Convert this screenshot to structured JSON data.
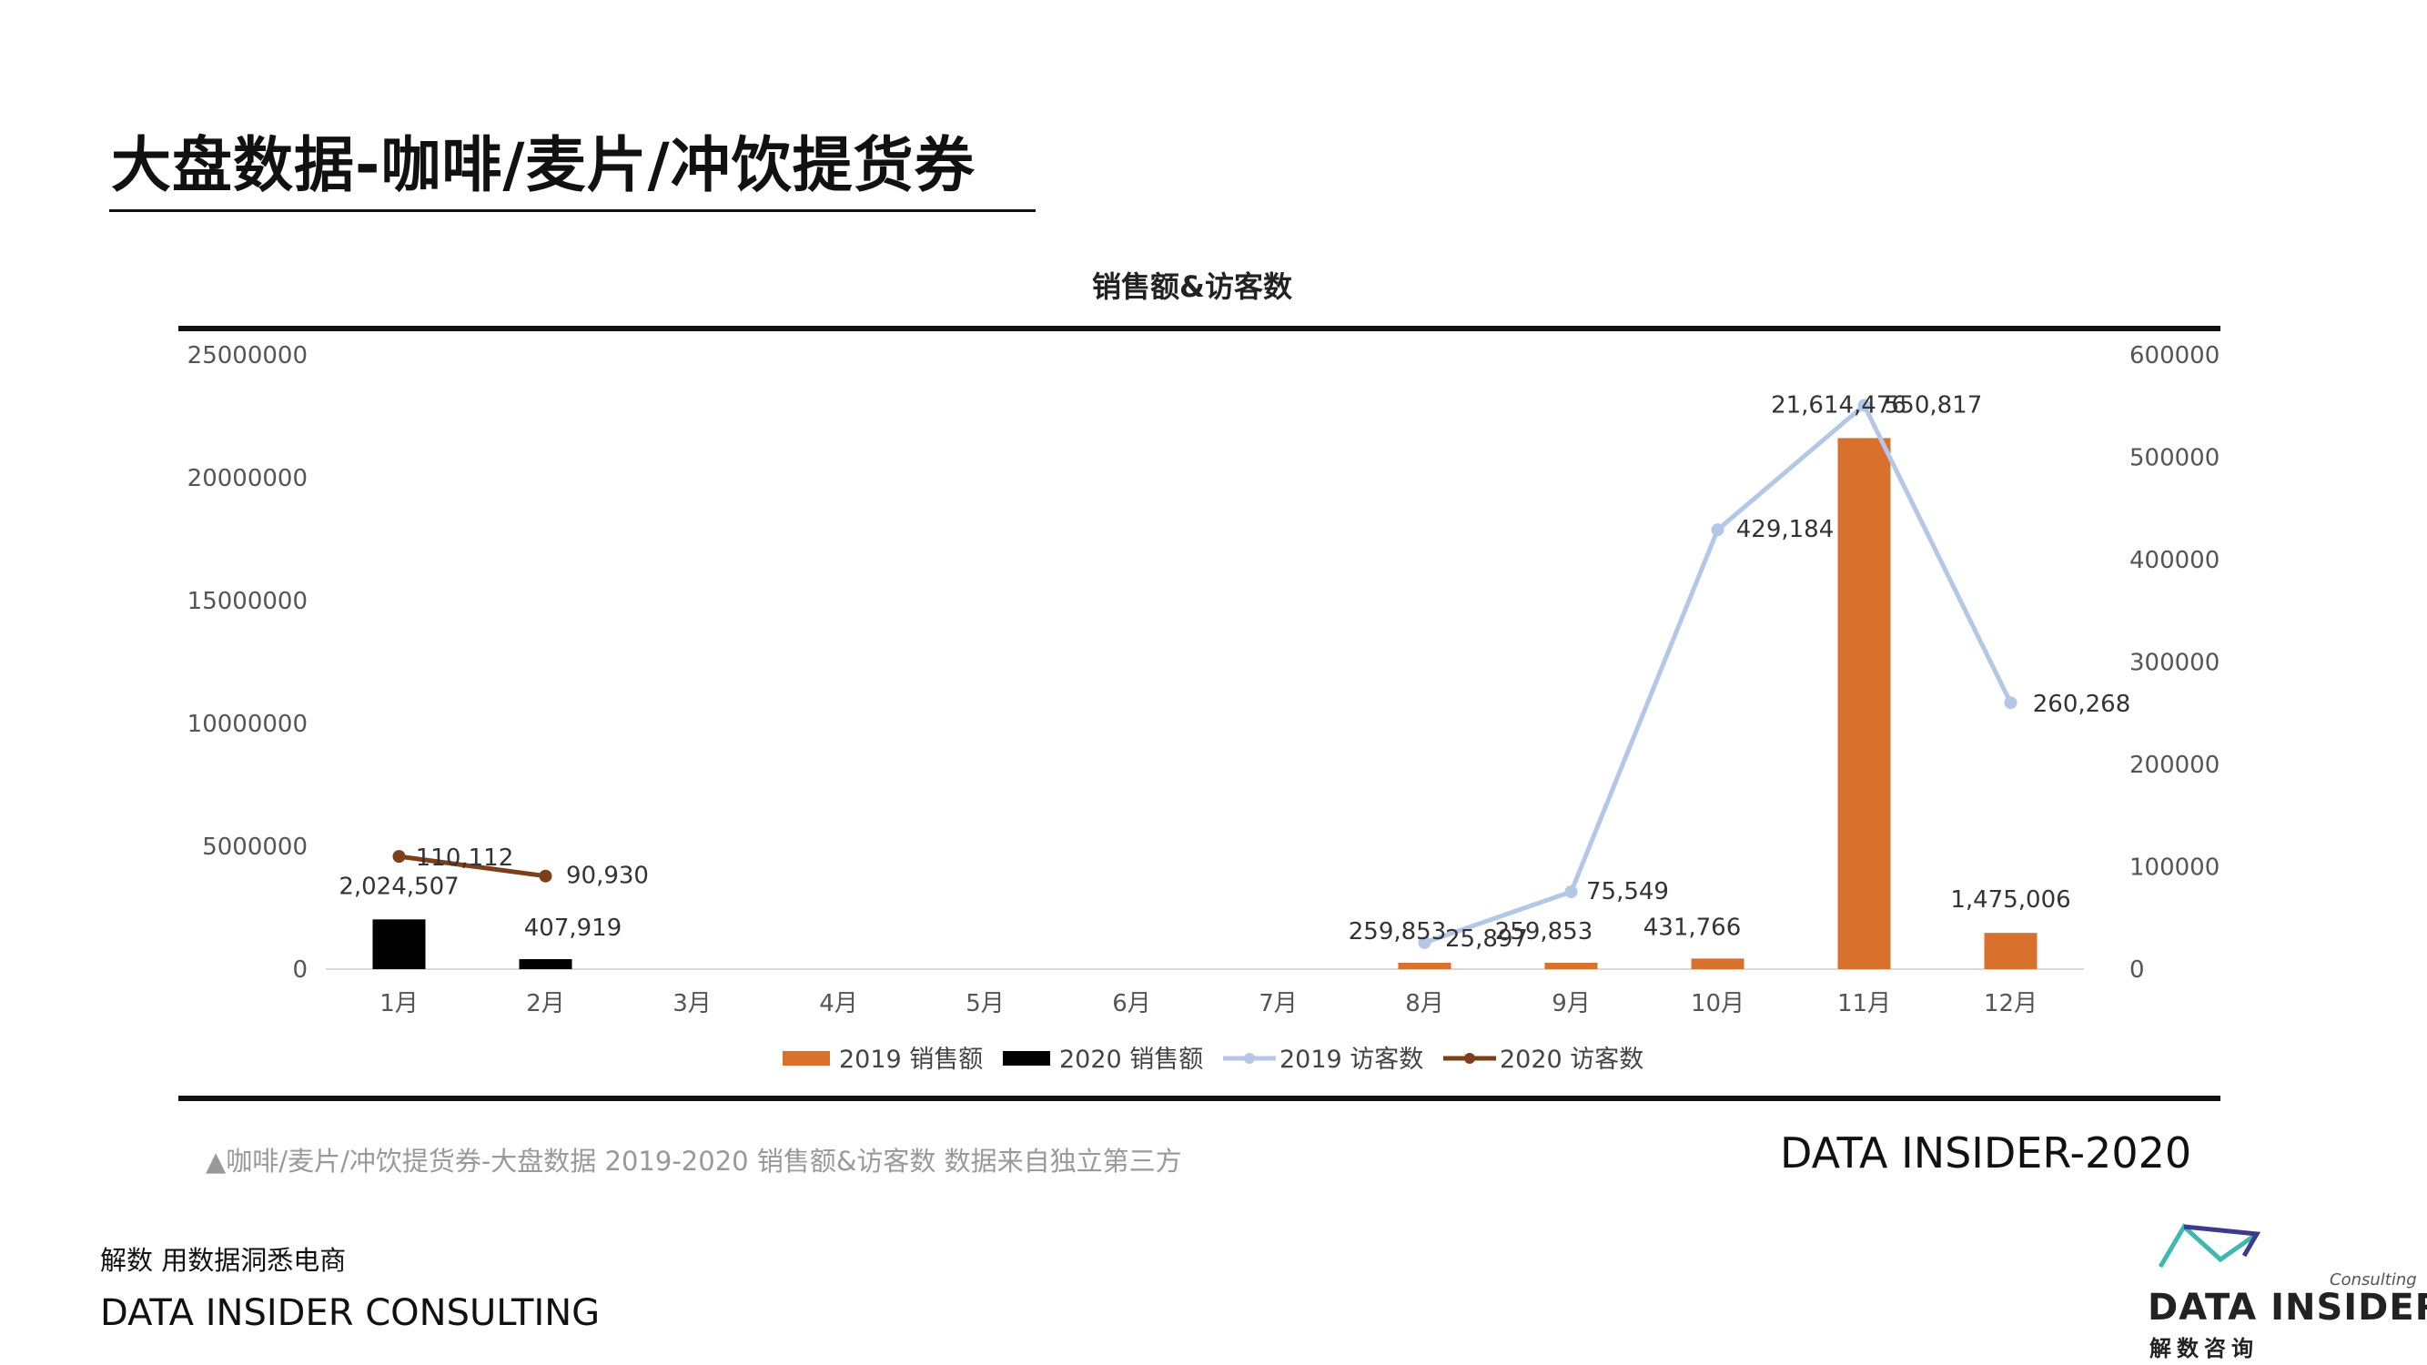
{
  "page": {
    "title": "大盘数据-咖啡/麦片/冲饮提货券",
    "caption": "▲咖啡/麦片/冲饮提货券-大盘数据 2019-2020 销售额&访客数 数据来自独立第三方",
    "brand_year": "DATA INSIDER-2020",
    "footer_slogan": "解数 用数据洞悉电商",
    "footer_company": "DATA INSIDER CONSULTING",
    "logo_consulting": "Consulting",
    "logo_name": "DATA INSIDER",
    "logo_cn": "解数咨询"
  },
  "colors": {
    "sales_2019": "#D9712E",
    "sales_2020": "#000000",
    "visitors_2019": "#B4C7E7",
    "visitors_2020": "#7B3F1A"
  },
  "chart_data": {
    "type": "bar",
    "title": "销售额&访客数",
    "categories": [
      "1月",
      "2月",
      "3月",
      "4月",
      "5月",
      "6月",
      "7月",
      "8月",
      "9月",
      "10月",
      "11月",
      "12月"
    ],
    "y_left": {
      "ylim": [
        0,
        25000000
      ],
      "ticks": [
        "0",
        "5000000",
        "10000000",
        "15000000",
        "20000000",
        "25000000"
      ]
    },
    "y_right": {
      "ylim": [
        0,
        600000
      ],
      "ticks": [
        "0",
        "100000",
        "200000",
        "300000",
        "400000",
        "500000",
        "600000"
      ]
    },
    "series": [
      {
        "name": "2019 销售额",
        "kind": "bar",
        "axis": "left",
        "values": [
          null,
          null,
          null,
          null,
          null,
          null,
          null,
          259853,
          259853,
          431766,
          21614476,
          1475006
        ],
        "labels": [
          "",
          "",
          "",
          "",
          "",
          "",
          "",
          "259,853",
          "259,853",
          "431,766",
          "21,614,476",
          "1,475,006"
        ]
      },
      {
        "name": "2020 销售额",
        "kind": "bar",
        "axis": "left",
        "values": [
          2024507,
          407919,
          null,
          null,
          null,
          null,
          null,
          null,
          null,
          null,
          null,
          null
        ],
        "labels": [
          "2,024,507",
          "407,919",
          "",
          "",
          "",
          "",
          "",
          "",
          "",
          "",
          "",
          ""
        ]
      },
      {
        "name": "2019 访客数",
        "kind": "line",
        "axis": "right",
        "values": [
          null,
          null,
          null,
          null,
          null,
          null,
          null,
          25897,
          75549,
          429184,
          550817,
          260268
        ],
        "labels": [
          "",
          "",
          "",
          "",
          "",
          "",
          "",
          "25,897",
          "75,549",
          "429,184",
          "550,817",
          "260,268"
        ]
      },
      {
        "name": "2020 访客数",
        "kind": "line",
        "axis": "right",
        "values": [
          110112,
          90930,
          null,
          null,
          null,
          null,
          null,
          null,
          null,
          null,
          null,
          null
        ],
        "labels": [
          "110,112",
          "90,930",
          "",
          "",
          "",
          "",
          "",
          "",
          "",
          "",
          "",
          ""
        ]
      }
    ],
    "legend_position": "bottom"
  }
}
